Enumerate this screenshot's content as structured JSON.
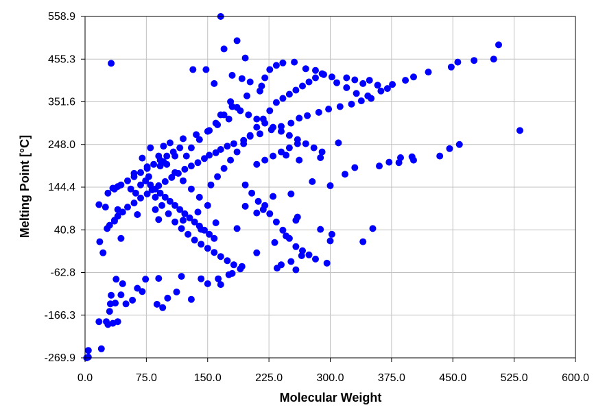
{
  "chart_data": {
    "type": "scatter",
    "title": "",
    "xlabel": "Molecular Weight",
    "ylabel": "Melting Point [°C]",
    "xlim": [
      0.0,
      600.0
    ],
    "ylim": [
      -269.9,
      558.9
    ],
    "x_ticks": [
      "0.0",
      "75.0",
      "150.0",
      "225.0",
      "300.0",
      "375.0",
      "450.0",
      "525.0",
      "600.0"
    ],
    "y_ticks": [
      "558.9",
      "455.3",
      "351.6",
      "248.0",
      "144.4",
      "40.8",
      "-62.8",
      "-166.3",
      "-269.9"
    ],
    "grid": true,
    "legend": "none",
    "marker_color": "#0000ff",
    "grid_color": "#c0c0c0",
    "points": [
      [
        2,
        -269.9
      ],
      [
        4,
        -252
      ],
      [
        4,
        -268
      ],
      [
        20,
        -248
      ],
      [
        17,
        -182
      ],
      [
        26,
        -182
      ],
      [
        30,
        -157
      ],
      [
        34,
        -186
      ],
      [
        40,
        -182
      ],
      [
        28,
        -189
      ],
      [
        31,
        -139
      ],
      [
        37,
        -137
      ],
      [
        44,
        -117
      ],
      [
        50,
        -139
      ],
      [
        38,
        -79
      ],
      [
        46,
        -90
      ],
      [
        32,
        -118
      ],
      [
        58,
        -130
      ],
      [
        70,
        -109
      ],
      [
        88,
        -140
      ],
      [
        95,
        -148
      ],
      [
        101,
        -125
      ],
      [
        64,
        -101
      ],
      [
        74,
        -79
      ],
      [
        90,
        -77
      ],
      [
        118,
        -72
      ],
      [
        112,
        -110
      ],
      [
        142,
        -78
      ],
      [
        166,
        -92
      ],
      [
        176,
        -68
      ],
      [
        150,
        -90
      ],
      [
        130,
        -128
      ],
      [
        163,
        -78
      ],
      [
        180,
        -65
      ],
      [
        192,
        -48
      ],
      [
        252,
        -36
      ],
      [
        240,
        -44
      ],
      [
        258,
        -56
      ],
      [
        296,
        -40
      ],
      [
        265,
        -22
      ],
      [
        235,
        -52
      ],
      [
        210,
        -15
      ],
      [
        22,
        -15
      ],
      [
        18,
        12
      ],
      [
        44,
        20
      ],
      [
        27,
        44
      ],
      [
        36,
        64
      ],
      [
        64,
        78
      ],
      [
        90,
        66
      ],
      [
        120,
        64
      ],
      [
        86,
        90
      ],
      [
        142,
        42
      ],
      [
        138,
        84
      ],
      [
        160,
        58
      ],
      [
        196,
        98
      ],
      [
        210,
        82
      ],
      [
        186,
        44
      ],
      [
        232,
        10
      ],
      [
        246,
        26
      ],
      [
        258,
        64
      ],
      [
        288,
        42
      ],
      [
        300,
        14
      ],
      [
        302,
        30
      ],
      [
        340,
        12
      ],
      [
        352,
        44
      ],
      [
        260,
        72
      ],
      [
        218,
        90
      ],
      [
        230,
        122
      ],
      [
        252,
        128
      ],
      [
        278,
        158
      ],
      [
        300,
        148
      ],
      [
        318,
        176
      ],
      [
        330,
        192
      ],
      [
        360,
        196
      ],
      [
        384,
        204
      ],
      [
        400,
        218
      ],
      [
        446,
        238
      ],
      [
        458,
        248
      ],
      [
        532,
        282
      ],
      [
        434,
        220
      ],
      [
        402,
        210
      ],
      [
        372,
        205
      ],
      [
        386,
        216
      ],
      [
        310,
        252
      ],
      [
        288,
        216
      ],
      [
        246,
        222
      ],
      [
        262,
        210
      ],
      [
        40,
        90
      ],
      [
        25,
        96
      ],
      [
        17,
        102
      ],
      [
        34,
        142
      ],
      [
        40,
        146
      ],
      [
        60,
        178
      ],
      [
        76,
        194
      ],
      [
        92,
        196
      ],
      [
        96,
        206
      ],
      [
        110,
        220
      ],
      [
        96,
        244
      ],
      [
        104,
        252
      ],
      [
        120,
        262
      ],
      [
        136,
        272
      ],
      [
        152,
        282
      ],
      [
        162,
        296
      ],
      [
        176,
        310
      ],
      [
        166,
        320
      ],
      [
        186,
        338
      ],
      [
        178,
        352
      ],
      [
        198,
        366
      ],
      [
        214,
        378
      ],
      [
        216,
        390
      ],
      [
        220,
        410
      ],
      [
        226,
        430
      ],
      [
        234,
        440
      ],
      [
        242,
        446
      ],
      [
        256,
        448
      ],
      [
        270,
        432
      ],
      [
        282,
        428
      ],
      [
        292,
        418
      ],
      [
        302,
        412
      ],
      [
        308,
        398
      ],
      [
        320,
        386
      ],
      [
        332,
        372
      ],
      [
        346,
        366
      ],
      [
        362,
        378
      ],
      [
        376,
        394
      ],
      [
        392,
        404
      ],
      [
        402,
        412
      ],
      [
        420,
        424
      ],
      [
        448,
        436
      ],
      [
        456,
        448
      ],
      [
        476,
        452
      ],
      [
        500,
        455.3
      ],
      [
        506,
        490
      ],
      [
        320,
        410
      ],
      [
        330,
        405
      ],
      [
        340,
        396
      ],
      [
        348,
        404
      ],
      [
        358,
        392
      ],
      [
        370,
        384
      ],
      [
        350,
        360
      ],
      [
        338,
        354
      ],
      [
        326,
        346
      ],
      [
        312,
        340
      ],
      [
        298,
        334
      ],
      [
        286,
        326
      ],
      [
        272,
        318
      ],
      [
        262,
        312
      ],
      [
        252,
        300
      ],
      [
        240,
        292
      ],
      [
        228,
        284
      ],
      [
        214,
        274
      ],
      [
        202,
        268
      ],
      [
        194,
        258
      ],
      [
        182,
        250
      ],
      [
        174,
        244
      ],
      [
        166,
        236
      ],
      [
        160,
        228
      ],
      [
        152,
        222
      ],
      [
        146,
        214
      ],
      [
        138,
        204
      ],
      [
        130,
        196
      ],
      [
        122,
        188
      ],
      [
        114,
        178
      ],
      [
        106,
        168
      ],
      [
        98,
        158
      ],
      [
        90,
        148
      ],
      [
        82,
        138
      ],
      [
        76,
        128
      ],
      [
        68,
        118
      ],
      [
        60,
        106
      ],
      [
        52,
        96
      ],
      [
        46,
        84
      ],
      [
        40,
        74
      ],
      [
        36,
        62
      ],
      [
        30,
        52
      ],
      [
        132,
        430
      ],
      [
        148,
        430
      ],
      [
        170,
        480
      ],
      [
        166,
        558.9
      ],
      [
        186,
        500
      ],
      [
        196,
        458
      ],
      [
        180,
        416
      ],
      [
        192,
        408
      ],
      [
        202,
        400
      ],
      [
        158,
        396
      ],
      [
        32,
        445
      ],
      [
        150,
        100
      ],
      [
        140,
        120
      ],
      [
        130,
        140
      ],
      [
        120,
        160
      ],
      [
        110,
        180
      ],
      [
        100,
        200
      ],
      [
        90,
        220
      ],
      [
        80,
        240
      ],
      [
        70,
        215
      ],
      [
        78,
        170
      ],
      [
        86,
        120
      ],
      [
        94,
        100
      ],
      [
        102,
        80
      ],
      [
        110,
        60
      ],
      [
        118,
        44
      ],
      [
        126,
        30
      ],
      [
        134,
        16
      ],
      [
        142,
        6
      ],
      [
        150,
        -4
      ],
      [
        158,
        -14
      ],
      [
        166,
        -24
      ],
      [
        174,
        -34
      ],
      [
        182,
        -44
      ],
      [
        190,
        -54
      ],
      [
        124,
        220
      ],
      [
        130,
        240
      ],
      [
        140,
        260
      ],
      [
        150,
        280
      ],
      [
        160,
        300
      ],
      [
        170,
        320
      ],
      [
        180,
        340
      ],
      [
        190,
        330
      ],
      [
        200,
        320
      ],
      [
        210,
        310
      ],
      [
        220,
        300
      ],
      [
        230,
        290
      ],
      [
        240,
        280
      ],
      [
        250,
        270
      ],
      [
        260,
        260
      ],
      [
        270,
        250
      ],
      [
        280,
        240
      ],
      [
        290,
        230
      ],
      [
        116,
        240
      ],
      [
        108,
        230
      ],
      [
        100,
        220
      ],
      [
        92,
        210
      ],
      [
        84,
        200
      ],
      [
        76,
        190
      ],
      [
        68,
        180
      ],
      [
        60,
        170
      ],
      [
        52,
        160
      ],
      [
        44,
        150
      ],
      [
        36,
        140
      ],
      [
        28,
        130
      ],
      [
        154,
        150
      ],
      [
        162,
        170
      ],
      [
        170,
        190
      ],
      [
        178,
        210
      ],
      [
        186,
        230
      ],
      [
        194,
        250
      ],
      [
        202,
        270
      ],
      [
        210,
        290
      ],
      [
        218,
        310
      ],
      [
        226,
        330
      ],
      [
        234,
        350
      ],
      [
        242,
        360
      ],
      [
        250,
        370
      ],
      [
        258,
        380
      ],
      [
        266,
        390
      ],
      [
        274,
        400
      ],
      [
        282,
        410
      ],
      [
        290,
        420
      ],
      [
        210,
        200
      ],
      [
        220,
        210
      ],
      [
        230,
        220
      ],
      [
        240,
        230
      ],
      [
        250,
        240
      ],
      [
        260,
        250
      ],
      [
        196,
        150
      ],
      [
        204,
        130
      ],
      [
        212,
        110
      ],
      [
        220,
        100
      ],
      [
        226,
        80
      ],
      [
        234,
        60
      ],
      [
        242,
        40
      ],
      [
        250,
        20
      ],
      [
        258,
        0
      ],
      [
        266,
        -10
      ],
      [
        274,
        -20
      ],
      [
        282,
        -30
      ],
      [
        56,
        140
      ],
      [
        62,
        130
      ],
      [
        68,
        150
      ],
      [
        74,
        160
      ],
      [
        80,
        150
      ],
      [
        86,
        140
      ],
      [
        92,
        130
      ],
      [
        98,
        120
      ],
      [
        104,
        110
      ],
      [
        110,
        100
      ],
      [
        116,
        90
      ],
      [
        122,
        80
      ],
      [
        128,
        70
      ],
      [
        134,
        60
      ],
      [
        140,
        50
      ],
      [
        146,
        40
      ],
      [
        152,
        30
      ],
      [
        158,
        20
      ]
    ]
  }
}
